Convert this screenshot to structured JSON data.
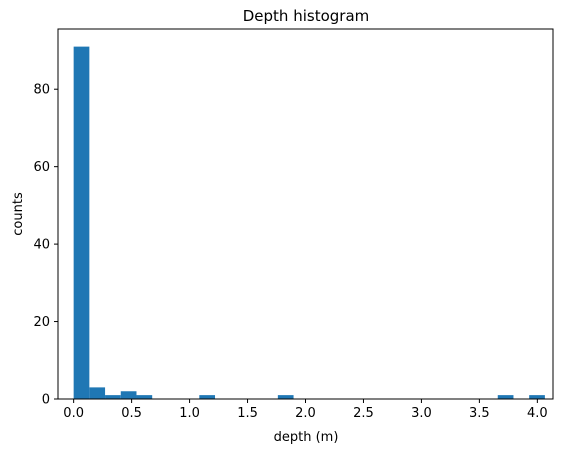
{
  "chart_data": {
    "type": "bar",
    "title": "Depth histogram",
    "xlabel": "depth (m)",
    "ylabel": "counts",
    "xlim": [
      -0.135,
      4.135
    ],
    "ylim": [
      0,
      95.55
    ],
    "xticks": [
      "0.0",
      "0.5",
      "1.0",
      "1.5",
      "2.0",
      "2.5",
      "3.0",
      "3.5",
      "4.0"
    ],
    "xtick_values": [
      0.0,
      0.5,
      1.0,
      1.5,
      2.0,
      2.5,
      3.0,
      3.5,
      4.0
    ],
    "yticks": [
      "0",
      "20",
      "40",
      "60",
      "80"
    ],
    "ytick_values": [
      0,
      20,
      40,
      60,
      80
    ],
    "bins": {
      "start": 0.0,
      "width": 0.1355,
      "counts": [
        91,
        3,
        1,
        2,
        1,
        0,
        0,
        0,
        1,
        0,
        0,
        0,
        0,
        1,
        0,
        0,
        0,
        0,
        0,
        0,
        0,
        0,
        0,
        0,
        0,
        0,
        0,
        1,
        0,
        1
      ]
    },
    "bar_color": "#1f77b4",
    "grid": false,
    "legend": "none"
  }
}
